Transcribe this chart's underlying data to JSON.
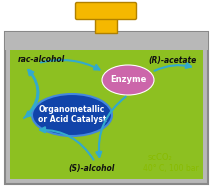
{
  "fig_width": 2.13,
  "fig_height": 1.89,
  "dpi": 100,
  "bg_color": "#ffffff",
  "reactor_bg": "#8dc021",
  "reactor_border": "#888888",
  "lid_color": "#f5b800",
  "lid_border": "#b08000",
  "enzyme_color": "#cc66aa",
  "enzyme_text": "Enzyme",
  "enzyme_text_color": "#ffffff",
  "catalyst_color": "#1144aa",
  "catalyst_border": "#4488dd",
  "catalyst_text1": "Organometallic",
  "catalyst_text2": "or Acid Catalyst",
  "catalyst_text_color": "#ffffff",
  "arrow_color": "#33aacc",
  "label_rac": "rac-alcohol",
  "label_R": "(R)-acetate",
  "label_S": "(S)-alcohol",
  "label_scco2": "scCO₂",
  "label_conditions": "40° C, 100 bar",
  "label_color_main": "#111111",
  "top_bar_color": "#b8b8b8",
  "top_bar_border": "#888888"
}
